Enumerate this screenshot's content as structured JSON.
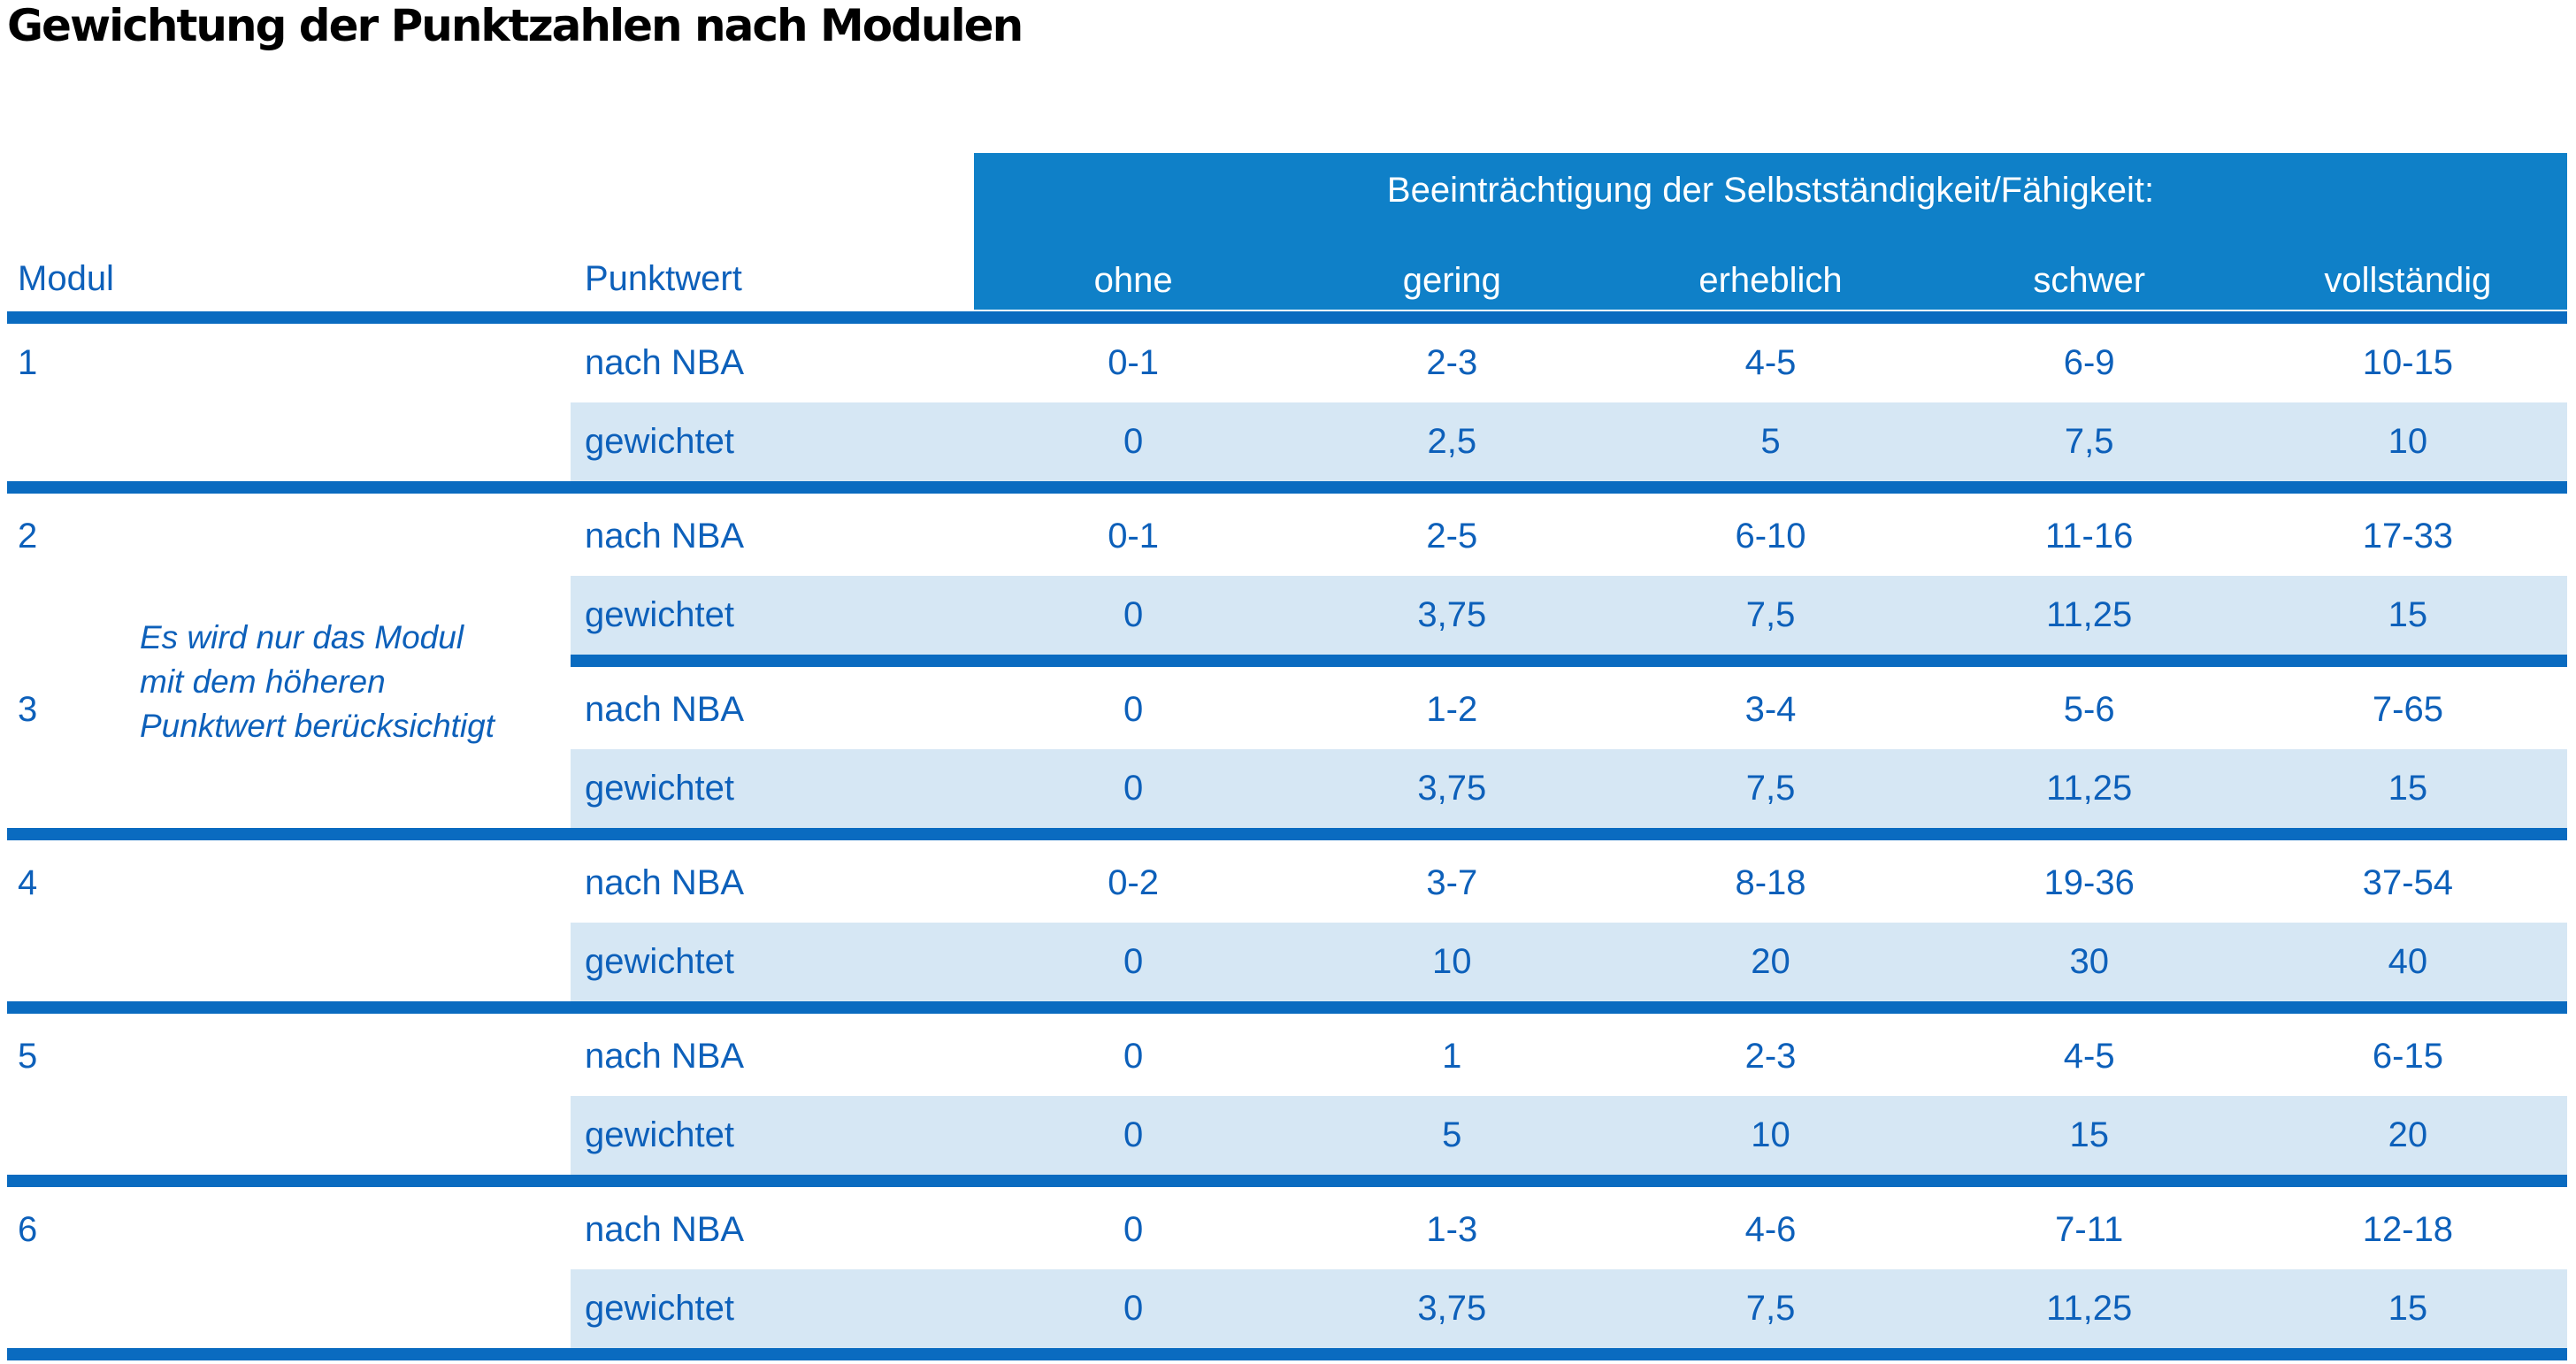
{
  "title": "Gewichtung der Punktzahlen nach Modulen",
  "table": {
    "header": {
      "modul": "Modul",
      "punktwert": "Punktwert",
      "impairment_title": "Beeinträchtigung der Selbstständigkeit/Fähigkeit:",
      "severity_levels": [
        "ohne",
        "gering",
        "erheblich",
        "schwer",
        "vollständig"
      ]
    },
    "row_labels": {
      "raw": "nach NBA",
      "weighted": "gewichtet"
    },
    "note": {
      "lines": [
        "Es wird nur das Modul",
        "mit dem höheren",
        "Punktwert berücksichtigt"
      ]
    },
    "modules": [
      {
        "id": "1",
        "nach_nba": [
          "0-1",
          "2-3",
          "4-5",
          "6-9",
          "10-15"
        ],
        "gewichtet": [
          "0",
          "2,5",
          "5",
          "7,5",
          "10"
        ]
      },
      {
        "id": "2",
        "nach_nba": [
          "0-1",
          "2-5",
          "6-10",
          "11-16",
          "17-33"
        ],
        "gewichtet": [
          "0",
          "3,75",
          "7,5",
          "11,25",
          "15"
        ]
      },
      {
        "id": "3",
        "nach_nba": [
          "0",
          "1-2",
          "3-4",
          "5-6",
          "7-65"
        ],
        "gewichtet": [
          "0",
          "3,75",
          "7,5",
          "11,25",
          "15"
        ]
      },
      {
        "id": "4",
        "nach_nba": [
          "0-2",
          "3-7",
          "8-18",
          "19-36",
          "37-54"
        ],
        "gewichtet": [
          "0",
          "10",
          "20",
          "30",
          "40"
        ]
      },
      {
        "id": "5",
        "nach_nba": [
          "0",
          "1",
          "2-3",
          "4-5",
          "6-15"
        ],
        "gewichtet": [
          "0",
          "5",
          "10",
          "15",
          "20"
        ]
      },
      {
        "id": "6",
        "nach_nba": [
          "0",
          "1-3",
          "4-6",
          "7-11",
          "12-18"
        ],
        "gewichtet": [
          "0",
          "3,75",
          "7,5",
          "11,25",
          "15"
        ]
      }
    ]
  },
  "colors": {
    "band_blue": "#0F80C8",
    "separator_blue": "#0A6BC0",
    "row_light_blue": "#D6E7F4",
    "text_blue": "#0D60BA",
    "title_black": "#000000",
    "header_text_white": "#FFFFFF"
  }
}
